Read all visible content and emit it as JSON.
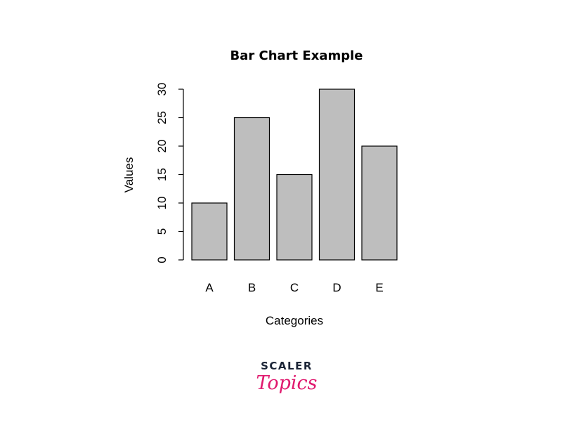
{
  "chart_data": {
    "type": "bar",
    "title": "Bar Chart Example",
    "xlabel": "Categories",
    "ylabel": "Values",
    "categories": [
      "A",
      "B",
      "C",
      "D",
      "E"
    ],
    "values": [
      10,
      25,
      15,
      30,
      20
    ],
    "ylim": [
      0,
      30
    ],
    "yticks": [
      0,
      5,
      10,
      15,
      20,
      25,
      30
    ],
    "grid": false,
    "bar_color": "#bebebe",
    "edge_color": "#000000"
  },
  "logo": {
    "top": "SCALER",
    "bottom": "Topics",
    "top_color": "#1b2436",
    "bottom_color": "#e0196e"
  }
}
